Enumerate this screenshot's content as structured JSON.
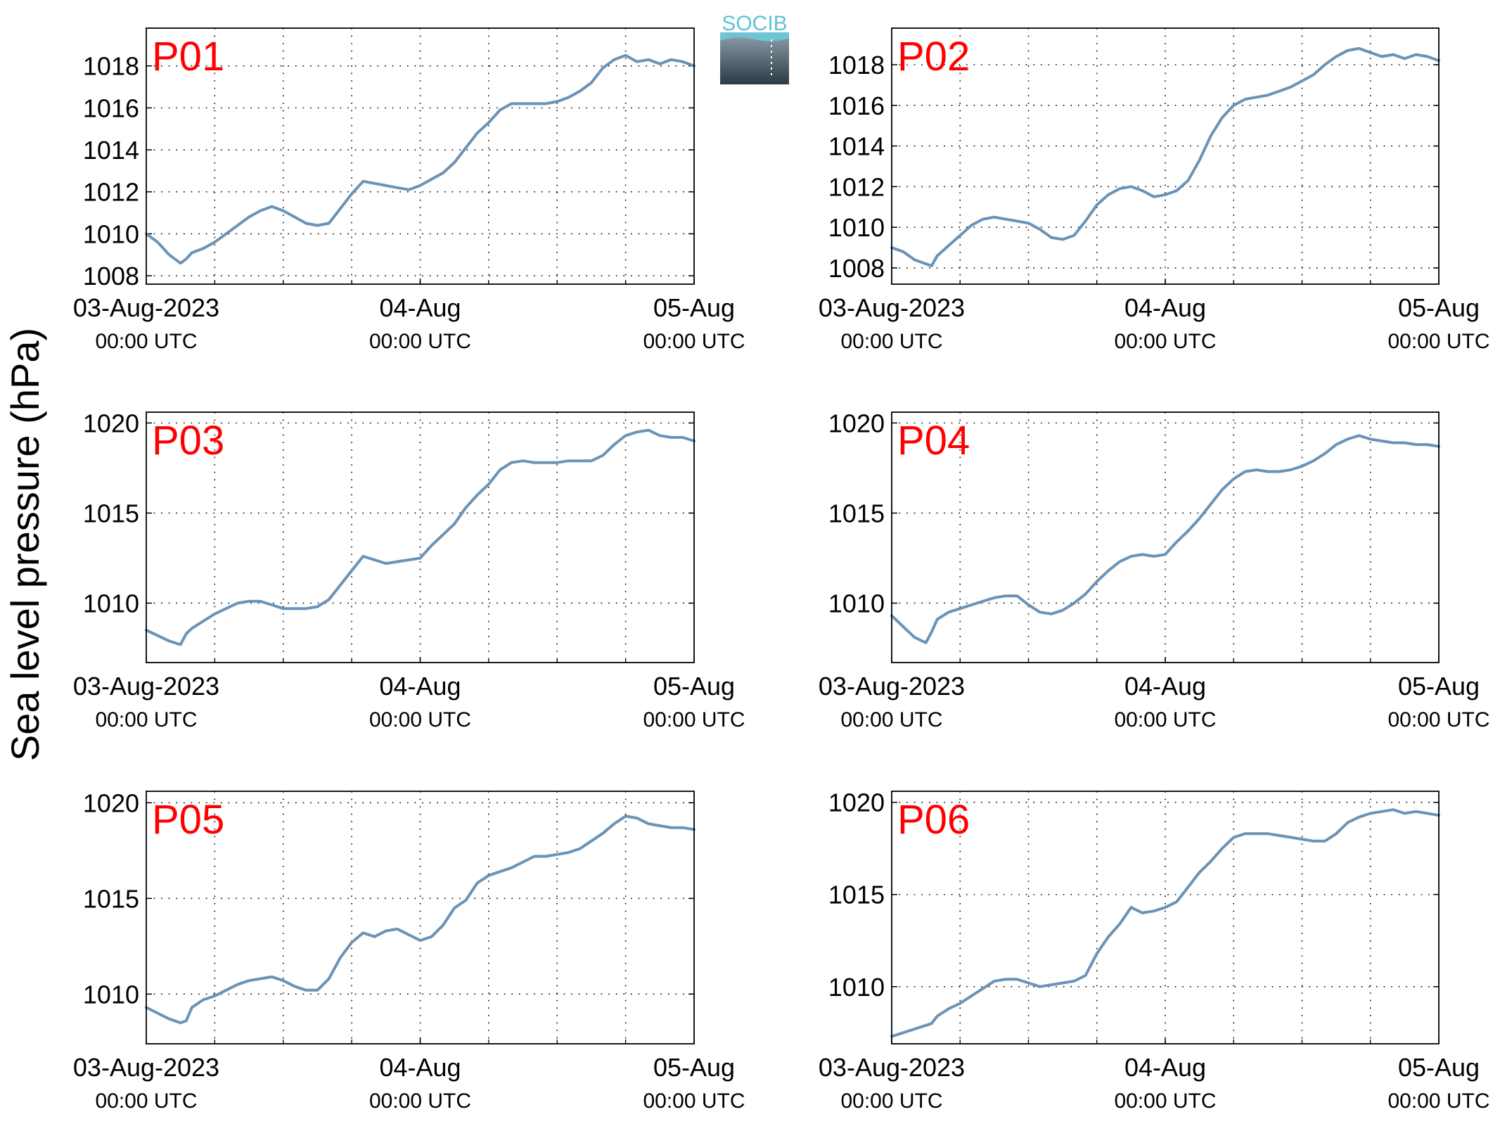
{
  "y_label": "Sea level pressure (hPa)",
  "logo": {
    "text": "SOCIB",
    "text_color": "#5fc3d6",
    "top_color": "#8fa3ad",
    "bottom_color": "#2b3a44"
  },
  "colors": {
    "series": "#6a93b7",
    "label": "#ff0000",
    "axes": "#000000",
    "grid": "#000000"
  },
  "chart_data": [
    {
      "type": "line",
      "panel": "P01",
      "x_range_hours": [
        0,
        48
      ],
      "ylim": [
        1007.6,
        1019.8
      ],
      "yticks": [
        1008,
        1010,
        1012,
        1014,
        1016,
        1018
      ],
      "xticks": [
        {
          "hour": 0,
          "date": "03-Aug-2023",
          "time": "00:00 UTC"
        },
        {
          "hour": 24,
          "date": "04-Aug",
          "time": "00:00 UTC"
        },
        {
          "hour": 48,
          "date": "05-Aug",
          "time": "00:00 UTC"
        }
      ],
      "grid_hours": [
        6,
        12,
        18,
        24,
        30,
        36,
        42
      ],
      "series": [
        {
          "x": [
            0,
            1,
            2,
            3,
            3.5,
            4,
            5,
            6,
            7,
            8,
            9,
            10,
            11,
            12,
            13,
            14,
            15,
            16,
            17,
            18,
            19,
            20,
            21,
            22,
            23,
            24,
            25,
            26,
            27,
            28,
            29,
            30,
            31,
            32,
            33,
            34,
            35,
            36,
            37,
            38,
            39,
            40,
            41,
            42,
            43,
            44,
            45,
            46,
            47,
            48
          ],
          "y": [
            1010.0,
            1009.6,
            1009.0,
            1008.6,
            1008.8,
            1009.1,
            1009.3,
            1009.6,
            1010.0,
            1010.4,
            1010.8,
            1011.1,
            1011.3,
            1011.1,
            1010.8,
            1010.5,
            1010.4,
            1010.5,
            1011.2,
            1011.9,
            1012.5,
            1012.4,
            1012.3,
            1012.2,
            1012.1,
            1012.3,
            1012.6,
            1012.9,
            1013.4,
            1014.1,
            1014.8,
            1015.3,
            1015.9,
            1016.2,
            1016.2,
            1016.2,
            1016.2,
            1016.3,
            1016.5,
            1016.8,
            1017.2,
            1017.9,
            1018.3,
            1018.5,
            1018.2,
            1018.3,
            1018.1,
            1018.3,
            1018.2,
            1018.0
          ]
        }
      ]
    },
    {
      "type": "line",
      "panel": "P02",
      "x_range_hours": [
        0,
        48
      ],
      "ylim": [
        1007.2,
        1019.8
      ],
      "yticks": [
        1008,
        1010,
        1012,
        1014,
        1016,
        1018
      ],
      "xticks": [
        {
          "hour": 0,
          "date": "03-Aug-2023",
          "time": "00:00 UTC"
        },
        {
          "hour": 24,
          "date": "04-Aug",
          "time": "00:00 UTC"
        },
        {
          "hour": 48,
          "date": "05-Aug",
          "time": "00:00 UTC"
        }
      ],
      "grid_hours": [
        6,
        12,
        18,
        24,
        30,
        36,
        42
      ],
      "series": [
        {
          "x": [
            0,
            1,
            2,
            3,
            3.5,
            4,
            5,
            6,
            7,
            8,
            9,
            10,
            11,
            12,
            13,
            14,
            15,
            16,
            17,
            18,
            19,
            20,
            21,
            22,
            23,
            24,
            25,
            26,
            27,
            28,
            29,
            30,
            31,
            32,
            33,
            34,
            35,
            36,
            37,
            38,
            39,
            40,
            41,
            42,
            43,
            44,
            45,
            46,
            47,
            48
          ],
          "y": [
            1009.0,
            1008.8,
            1008.4,
            1008.2,
            1008.1,
            1008.6,
            1009.1,
            1009.6,
            1010.1,
            1010.4,
            1010.5,
            1010.4,
            1010.3,
            1010.2,
            1009.9,
            1009.5,
            1009.4,
            1009.6,
            1010.3,
            1011.1,
            1011.6,
            1011.9,
            1012.0,
            1011.8,
            1011.5,
            1011.6,
            1011.8,
            1012.3,
            1013.3,
            1014.5,
            1015.4,
            1016.0,
            1016.3,
            1016.4,
            1016.5,
            1016.7,
            1016.9,
            1017.2,
            1017.5,
            1018.0,
            1018.4,
            1018.7,
            1018.8,
            1018.6,
            1018.4,
            1018.5,
            1018.3,
            1018.5,
            1018.4,
            1018.2
          ]
        }
      ]
    },
    {
      "type": "line",
      "panel": "P03",
      "x_range_hours": [
        0,
        48
      ],
      "ylim": [
        1006.7,
        1020.6
      ],
      "yticks": [
        1010,
        1015,
        1020
      ],
      "xticks": [
        {
          "hour": 0,
          "date": "03-Aug-2023",
          "time": "00:00 UTC"
        },
        {
          "hour": 24,
          "date": "04-Aug",
          "time": "00:00 UTC"
        },
        {
          "hour": 48,
          "date": "05-Aug",
          "time": "00:00 UTC"
        }
      ],
      "grid_hours": [
        6,
        12,
        18,
        24,
        30,
        36,
        42
      ],
      "series": [
        {
          "x": [
            0,
            1,
            2,
            3,
            3.5,
            4,
            5,
            6,
            7,
            8,
            9,
            10,
            11,
            12,
            13,
            14,
            15,
            16,
            17,
            18,
            19,
            20,
            21,
            22,
            23,
            24,
            25,
            26,
            27,
            28,
            29,
            30,
            31,
            32,
            33,
            34,
            35,
            36,
            37,
            38,
            39,
            40,
            41,
            42,
            43,
            44,
            45,
            46,
            47,
            48
          ],
          "y": [
            1008.5,
            1008.2,
            1007.9,
            1007.7,
            1008.3,
            1008.6,
            1009.0,
            1009.4,
            1009.7,
            1010.0,
            1010.1,
            1010.1,
            1009.9,
            1009.7,
            1009.7,
            1009.7,
            1009.8,
            1010.2,
            1011.0,
            1011.8,
            1012.6,
            1012.4,
            1012.2,
            1012.3,
            1012.4,
            1012.5,
            1013.2,
            1013.8,
            1014.4,
            1015.3,
            1016.0,
            1016.6,
            1017.4,
            1017.8,
            1017.9,
            1017.8,
            1017.8,
            1017.8,
            1017.9,
            1017.9,
            1017.9,
            1018.2,
            1018.8,
            1019.3,
            1019.5,
            1019.6,
            1019.3,
            1019.2,
            1019.2,
            1019.0
          ]
        }
      ]
    },
    {
      "type": "line",
      "panel": "P04",
      "x_range_hours": [
        0,
        48
      ],
      "ylim": [
        1006.7,
        1020.6
      ],
      "yticks": [
        1010,
        1015,
        1020
      ],
      "xticks": [
        {
          "hour": 0,
          "date": "03-Aug-2023",
          "time": "00:00 UTC"
        },
        {
          "hour": 24,
          "date": "04-Aug",
          "time": "00:00 UTC"
        },
        {
          "hour": 48,
          "date": "05-Aug",
          "time": "00:00 UTC"
        }
      ],
      "grid_hours": [
        6,
        12,
        18,
        24,
        30,
        36,
        42
      ],
      "series": [
        {
          "x": [
            0,
            1,
            2,
            3,
            3.5,
            4,
            5,
            6,
            7,
            8,
            9,
            10,
            11,
            12,
            13,
            14,
            15,
            16,
            17,
            18,
            19,
            20,
            21,
            22,
            23,
            24,
            25,
            26,
            27,
            28,
            29,
            30,
            31,
            32,
            33,
            34,
            35,
            36,
            37,
            38,
            39,
            40,
            41,
            42,
            43,
            44,
            45,
            46,
            47,
            48
          ],
          "y": [
            1009.3,
            1008.7,
            1008.1,
            1007.8,
            1008.4,
            1009.1,
            1009.5,
            1009.7,
            1009.9,
            1010.1,
            1010.3,
            1010.4,
            1010.4,
            1009.9,
            1009.5,
            1009.4,
            1009.6,
            1010.0,
            1010.5,
            1011.2,
            1011.8,
            1012.3,
            1012.6,
            1012.7,
            1012.6,
            1012.7,
            1013.4,
            1014.0,
            1014.7,
            1015.5,
            1016.3,
            1016.9,
            1017.3,
            1017.4,
            1017.3,
            1017.3,
            1017.4,
            1017.6,
            1017.9,
            1018.3,
            1018.8,
            1019.1,
            1019.3,
            1019.1,
            1019.0,
            1018.9,
            1018.9,
            1018.8,
            1018.8,
            1018.7
          ]
        }
      ]
    },
    {
      "type": "line",
      "panel": "P05",
      "x_range_hours": [
        0,
        48
      ],
      "ylim": [
        1007.4,
        1020.6
      ],
      "yticks": [
        1010,
        1015,
        1020
      ],
      "xticks": [
        {
          "hour": 0,
          "date": "03-Aug-2023",
          "time": "00:00 UTC"
        },
        {
          "hour": 24,
          "date": "04-Aug",
          "time": "00:00 UTC"
        },
        {
          "hour": 48,
          "date": "05-Aug",
          "time": "00:00 UTC"
        }
      ],
      "grid_hours": [
        6,
        12,
        18,
        24,
        30,
        36,
        42
      ],
      "series": [
        {
          "x": [
            0,
            1,
            2,
            3,
            3.5,
            4,
            5,
            6,
            7,
            8,
            9,
            10,
            11,
            12,
            13,
            14,
            15,
            16,
            17,
            18,
            19,
            20,
            21,
            22,
            23,
            24,
            25,
            26,
            27,
            28,
            29,
            30,
            31,
            32,
            33,
            34,
            35,
            36,
            37,
            38,
            39,
            40,
            41,
            42,
            43,
            44,
            45,
            46,
            47,
            48
          ],
          "y": [
            1009.3,
            1009.0,
            1008.7,
            1008.5,
            1008.6,
            1009.3,
            1009.7,
            1009.9,
            1010.2,
            1010.5,
            1010.7,
            1010.8,
            1010.9,
            1010.7,
            1010.4,
            1010.2,
            1010.2,
            1010.8,
            1011.9,
            1012.7,
            1013.2,
            1013.0,
            1013.3,
            1013.4,
            1013.1,
            1012.8,
            1013.0,
            1013.6,
            1014.5,
            1014.9,
            1015.8,
            1016.2,
            1016.4,
            1016.6,
            1016.9,
            1017.2,
            1017.2,
            1017.3,
            1017.4,
            1017.6,
            1018.0,
            1018.4,
            1018.9,
            1019.3,
            1019.2,
            1018.9,
            1018.8,
            1018.7,
            1018.7,
            1018.6
          ]
        }
      ]
    },
    {
      "type": "line",
      "panel": "P06",
      "x_range_hours": [
        0,
        48
      ],
      "ylim": [
        1006.9,
        1020.6
      ],
      "yticks": [
        1010,
        1015,
        1020
      ],
      "xticks": [
        {
          "hour": 0,
          "date": "03-Aug-2023",
          "time": "00:00 UTC"
        },
        {
          "hour": 24,
          "date": "04-Aug",
          "time": "00:00 UTC"
        },
        {
          "hour": 48,
          "date": "05-Aug",
          "time": "00:00 UTC"
        }
      ],
      "grid_hours": [
        6,
        12,
        18,
        24,
        30,
        36,
        42
      ],
      "series": [
        {
          "x": [
            0,
            1,
            2,
            3,
            3.5,
            4,
            5,
            6,
            7,
            8,
            9,
            10,
            11,
            12,
            13,
            14,
            15,
            16,
            17,
            18,
            19,
            20,
            21,
            22,
            23,
            24,
            25,
            26,
            27,
            28,
            29,
            30,
            31,
            32,
            33,
            34,
            35,
            36,
            37,
            38,
            39,
            40,
            41,
            42,
            43,
            44,
            45,
            46,
            47,
            48
          ],
          "y": [
            1007.3,
            1007.5,
            1007.7,
            1007.9,
            1008.0,
            1008.4,
            1008.8,
            1009.1,
            1009.5,
            1009.9,
            1010.3,
            1010.4,
            1010.4,
            1010.2,
            1010.0,
            1010.1,
            1010.2,
            1010.3,
            1010.6,
            1011.8,
            1012.7,
            1013.4,
            1014.3,
            1014.0,
            1014.1,
            1014.3,
            1014.6,
            1015.4,
            1016.2,
            1016.8,
            1017.5,
            1018.1,
            1018.3,
            1018.3,
            1018.3,
            1018.2,
            1018.1,
            1018.0,
            1017.9,
            1017.9,
            1018.3,
            1018.9,
            1019.2,
            1019.4,
            1019.5,
            1019.6,
            1019.4,
            1019.5,
            1019.4,
            1019.3
          ]
        }
      ]
    }
  ]
}
